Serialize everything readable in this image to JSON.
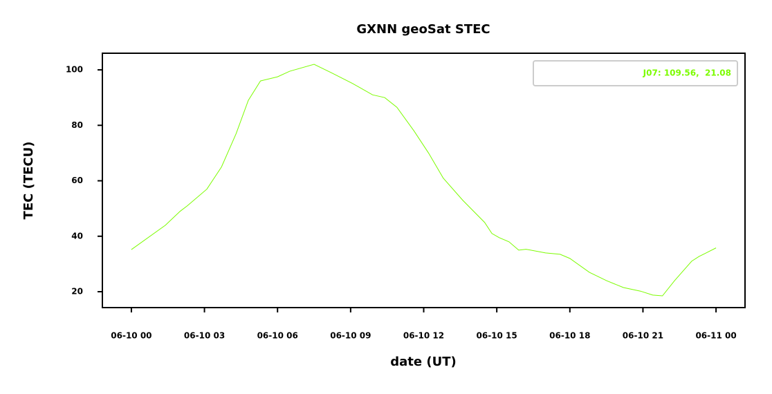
{
  "chart_data": {
    "type": "line",
    "title": "GXNN geoSat STEC",
    "x_label": "date (UT)",
    "y_label": "TEC (TECU)",
    "x": [
      0,
      1.4,
      2,
      2.3,
      3.1,
      3.7,
      4.3,
      4.8,
      5.3,
      6,
      6.5,
      7.5,
      8.2,
      9.1,
      9.9,
      10.4,
      10.9,
      11.6,
      12.2,
      12.8,
      13.6,
      14.5,
      14.8,
      15.1,
      15.5,
      15.9,
      16.2,
      17,
      17.6,
      18,
      18.8,
      19.5,
      20.2,
      20.9,
      21.4,
      21.8,
      22.3,
      23,
      23.3,
      23.6,
      24
    ],
    "series": [
      {
        "name": "J07: 109.56,  21.08",
        "color": "#7cfc00",
        "values": [
          35.2,
          44,
          49,
          51,
          57,
          65,
          77,
          89,
          96,
          97.5,
          99.5,
          102,
          99,
          95,
          91,
          90,
          86.5,
          78,
          70,
          61,
          53,
          45,
          41,
          39.5,
          38,
          35,
          35.3,
          34,
          33.5,
          32,
          27,
          24,
          21.5,
          20.2,
          18.8,
          18.5,
          24,
          31,
          32.7,
          34,
          35.8
        ]
      }
    ],
    "xlim": [
      -1.19,
      25.19
    ],
    "ylim": [
      14.27,
      106
    ],
    "xticks": [
      {
        "value": 0,
        "label": "06-10 00"
      },
      {
        "value": 3,
        "label": "06-10 03"
      },
      {
        "value": 6,
        "label": "06-10 06"
      },
      {
        "value": 9,
        "label": "06-10 09"
      },
      {
        "value": 12,
        "label": "06-10 12"
      },
      {
        "value": 15,
        "label": "06-10 15"
      },
      {
        "value": 18,
        "label": "06-10 18"
      },
      {
        "value": 21,
        "label": "06-10 21"
      },
      {
        "value": 24,
        "label": "06-11 00"
      }
    ],
    "yticks": [
      20,
      40,
      60,
      80,
      100
    ],
    "legend": "upper right"
  }
}
